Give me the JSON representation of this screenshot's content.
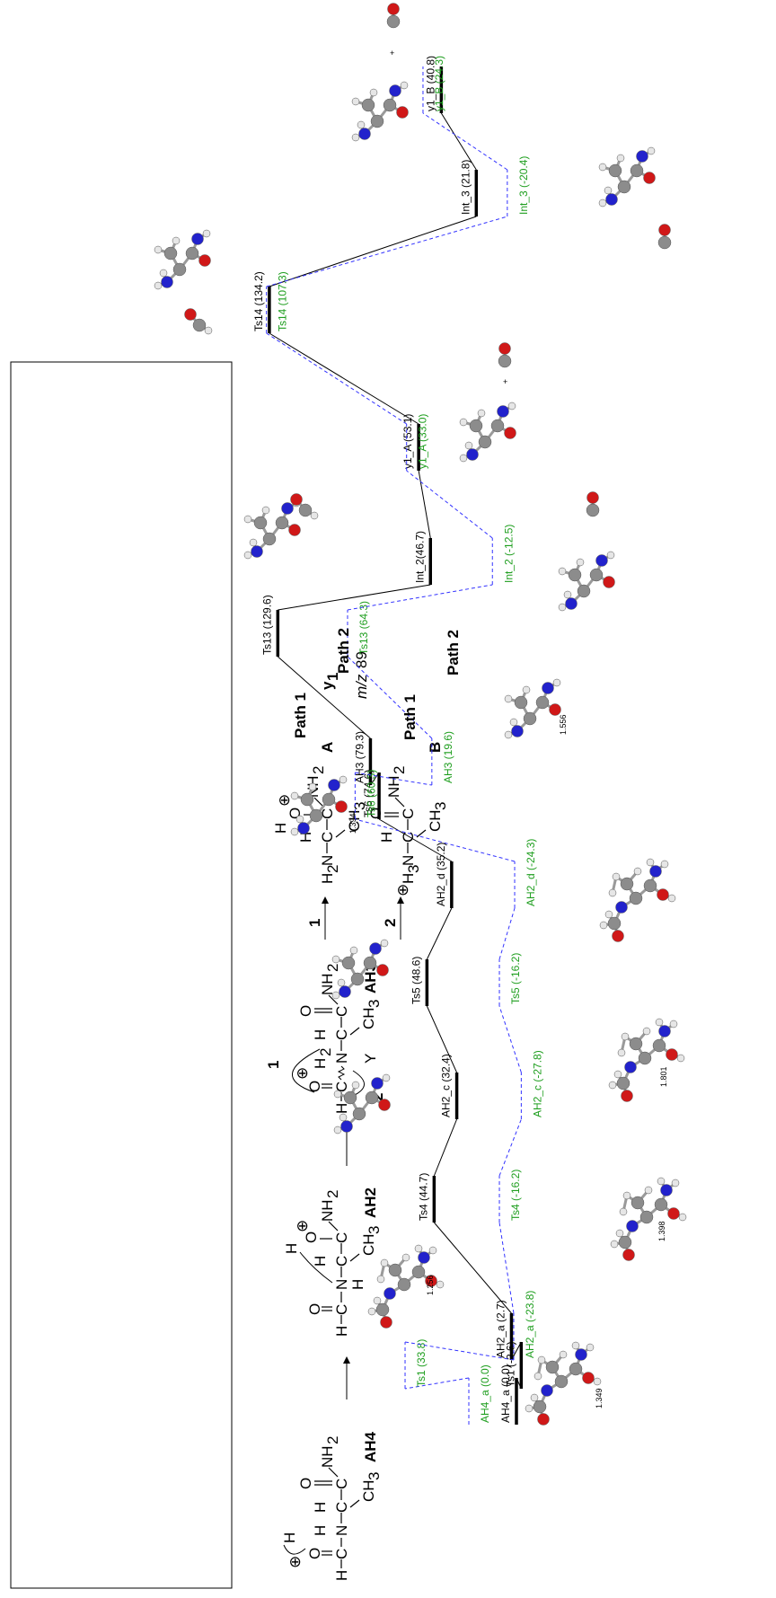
{
  "path1_levels": [
    {
      "label": "AH4_a (0.0)",
      "energy": 0.0
    },
    {
      "label": "Ts1 (-2.6)",
      "energy": -2.6
    },
    {
      "label": "AH2_a (2.7)",
      "energy": 2.7
    },
    {
      "label": "Ts4 (44.7)",
      "energy": 44.7
    },
    {
      "label": "AH2_c (32.4)",
      "energy": 32.4
    },
    {
      "label": "Ts5 (48.6)",
      "energy": 48.6
    },
    {
      "label": "AH2_d (35.2)",
      "energy": 35.2
    },
    {
      "label": "Ts6 (74.6)",
      "energy": 74.6
    },
    {
      "label": "AH3 (79.3)",
      "energy": 79.3
    },
    {
      "label": "Ts13 (129.6)",
      "energy": 129.6
    },
    {
      "label": "Int_2(46.7)",
      "energy": 46.7
    },
    {
      "label": "y1_A (53.1)",
      "energy": 53.1
    },
    {
      "label": "Ts14 (134.2)",
      "energy": 134.2
    },
    {
      "label": "Int_3 (21.8)",
      "energy": 21.8
    },
    {
      "label": "y1_B (40.8)",
      "energy": 40.8
    }
  ],
  "path2_levels": [
    {
      "label": "AH4_a (0.0)",
      "energy": 0.0
    },
    {
      "label": "Ts1 (33.8)",
      "energy": 33.8
    },
    {
      "label": "AH2_a (-23.8)",
      "energy": -23.8
    },
    {
      "label": "Ts4 (-16.2)",
      "energy": -16.2
    },
    {
      "label": "AH2_c (-27.8)",
      "energy": -27.8
    },
    {
      "label": "Ts5 (-16.2)",
      "energy": -16.2
    },
    {
      "label": "AH2_d (-24.3)",
      "energy": -24.3
    },
    {
      "label": "Ts6 (60.3)",
      "energy": 60.3
    },
    {
      "label": "AH3 (19.6)",
      "energy": 19.6
    },
    {
      "label": "Ts13 (64.3)",
      "energy": 64.3
    },
    {
      "label": "Int_2 (-12.5)",
      "energy": -12.5
    },
    {
      "label": "y1_A (33.0)",
      "energy": 33.0
    },
    {
      "label": "Ts14 (107.3)",
      "energy": 107.3
    },
    {
      "label": "Int_3 (-20.4)",
      "energy": -20.4
    },
    {
      "label": "y1_B (24.3)",
      "energy": 24.3
    }
  ],
  "path_labels": {
    "upper_path1": "Path 1",
    "upper_path2": "Path 2",
    "lower_path1": "Path 1",
    "lower_path2": "Path 2"
  },
  "bond_lengths": [
    "1.349",
    "1.256",
    "1.398",
    "1.801",
    "1.394",
    "1.556"
  ],
  "plus_sign": "+",
  "scheme": {
    "species_ah4": "AH4",
    "species_ah2": "AH2",
    "species_ah3": "AH3",
    "species_a": "A",
    "species_b": "B",
    "y1": "y",
    "y1_sub": "1",
    "mz_italic": "m/z",
    "mz_value": "89",
    "route1": "1",
    "route2": "2",
    "y_group": "Y",
    "h": "H",
    "o": "O",
    "n": "N",
    "c": "C",
    "nh2": "NH",
    "nh2_sub": "2",
    "ch3": "CH",
    "ch3_sub": "3",
    "h2n": "H",
    "h3n": "H",
    "oplus": "⊕"
  },
  "colors": {
    "path_energy_black": "#000000",
    "path_energy_green": "#1e9e1e",
    "dashed_line": "#3333ff",
    "atom_carbon": "#8c8c8c",
    "atom_oxygen": "#d01818",
    "atom_nitrogen": "#2222cc",
    "atom_hydrogen": "#e6e6e6"
  }
}
